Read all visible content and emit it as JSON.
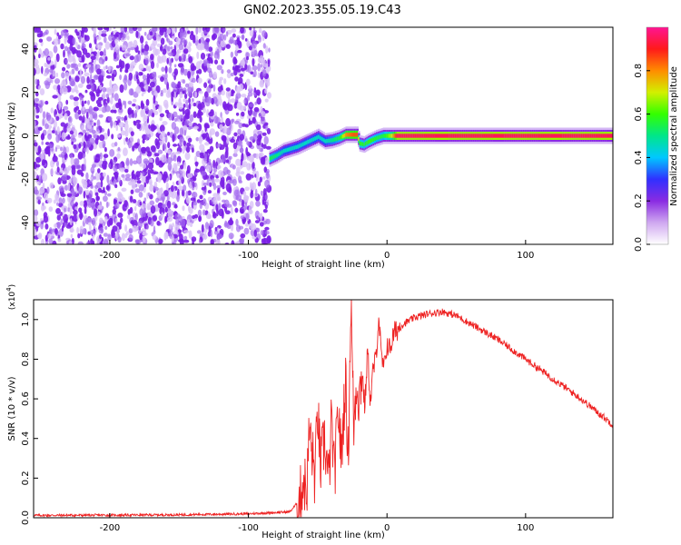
{
  "figure": {
    "title": "GN02.2023.355.05.19.C43"
  },
  "chart_data": [
    {
      "type": "heatmap",
      "xlabel": "Height of straight line (km)",
      "ylabel": "Frequency (Hz)",
      "xlim": [
        -255,
        163
      ],
      "ylim": [
        -50,
        50
      ],
      "xticks": [
        -200,
        -100,
        0,
        100
      ],
      "yticks": [
        -40,
        -20,
        0,
        20,
        40
      ],
      "grid": false,
      "colorbar": {
        "label": "Normalized spectral amplitude",
        "range": [
          0.0,
          1.0
        ],
        "ticks": [
          "0.0",
          "0.2",
          "0.4",
          "0.6",
          "0.8"
        ],
        "colors": [
          "#ffffff",
          "#cfa8f0",
          "#8a2be2",
          "#3030ff",
          "#00c8ff",
          "#00e68a",
          "#33ff00",
          "#d2f000",
          "#ff8c00",
          "#ff1a1a",
          "#ff1493"
        ]
      },
      "noise_region": {
        "x": [
          -255,
          -85
        ],
        "amplitude": [
          0.05,
          0.2
        ]
      },
      "signal_trace": [
        {
          "x": -85,
          "f": -10.5,
          "amp": 0.55
        },
        {
          "x": -80,
          "f": -9,
          "amp": 0.5
        },
        {
          "x": -75,
          "f": -7,
          "amp": 0.45
        },
        {
          "x": -70,
          "f": -6,
          "amp": 0.45
        },
        {
          "x": -65,
          "f": -5,
          "amp": 0.45
        },
        {
          "x": -60,
          "f": -3.5,
          "amp": 0.45
        },
        {
          "x": -55,
          "f": -2,
          "amp": 0.45
        },
        {
          "x": -50,
          "f": -0.5,
          "amp": 0.45
        },
        {
          "x": -45,
          "f": -2.5,
          "amp": 0.45
        },
        {
          "x": -40,
          "f": -2,
          "amp": 0.5
        },
        {
          "x": -35,
          "f": -1,
          "amp": 0.55
        },
        {
          "x": -30,
          "f": 0.5,
          "amp": 0.8
        },
        {
          "x": -25,
          "f": 0.5,
          "amp": 0.85
        },
        {
          "x": -22,
          "f": 0.5,
          "amp": 0.85
        },
        {
          "x": -20,
          "f": -3.5,
          "amp": 0.6
        },
        {
          "x": -17,
          "f": -4,
          "amp": 0.55
        },
        {
          "x": -13,
          "f": -2.5,
          "amp": 0.6
        },
        {
          "x": -8,
          "f": -1,
          "amp": 0.55
        },
        {
          "x": -3,
          "f": 0,
          "amp": 0.55
        },
        {
          "x": 3,
          "f": 0,
          "amp": 0.7
        },
        {
          "x": 7,
          "f": 0,
          "amp": 0.95
        },
        {
          "x": 163,
          "f": 0,
          "amp": 0.95
        }
      ]
    },
    {
      "type": "line",
      "xlabel": "Height of straight line (km)",
      "ylabel": "SNR (10 * v/v)",
      "y_multiplier": "(x10",
      "y_multiplier_exp": "4",
      "y_multiplier_close": ")",
      "xlim": [
        -255,
        163
      ],
      "ylim": [
        0,
        1.1
      ],
      "xticks": [
        -200,
        -100,
        0,
        100
      ],
      "yticks": [
        "0.0",
        "0.2",
        "0.4",
        "0.6",
        "0.8",
        "1.0"
      ],
      "grid": false,
      "series": [
        {
          "color": "#ee2222",
          "x": [
            -255,
            -200,
            -150,
            -100,
            -70,
            -63,
            -60,
            -58,
            -56,
            -52,
            -50,
            -48,
            -45,
            -42,
            -40,
            -38,
            -35,
            -33,
            -30,
            -28,
            -26,
            -24,
            -22,
            -20,
            -18,
            -16,
            -14,
            -12,
            -10,
            -8,
            -6,
            -4,
            -2,
            0,
            2,
            5,
            10,
            20,
            30,
            40,
            50,
            60,
            80,
            100,
            120,
            140,
            163
          ],
          "y": [
            0.012,
            0.013,
            0.015,
            0.02,
            0.03,
            0.09,
            0.2,
            0.12,
            0.45,
            0.2,
            0.55,
            0.25,
            0.4,
            0.17,
            0.5,
            0.2,
            0.55,
            0.3,
            0.7,
            0.3,
            1.1,
            0.45,
            0.7,
            0.6,
            0.75,
            0.55,
            0.85,
            0.58,
            0.75,
            0.8,
            1.02,
            0.8,
            0.75,
            0.88,
            0.85,
            0.93,
            0.97,
            1.01,
            1.03,
            1.04,
            1.02,
            0.98,
            0.9,
            0.8,
            0.7,
            0.6,
            0.47
          ]
        }
      ]
    }
  ]
}
